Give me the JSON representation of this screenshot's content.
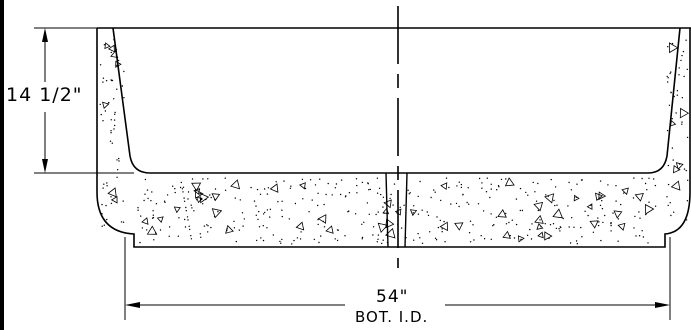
{
  "drawing": {
    "height_dimension": "14  1/2\"",
    "width_dimension": "54\"",
    "width_note": "BOT.  I.D.",
    "colors": {
      "line": "#000000",
      "background": "#ffffff"
    }
  }
}
